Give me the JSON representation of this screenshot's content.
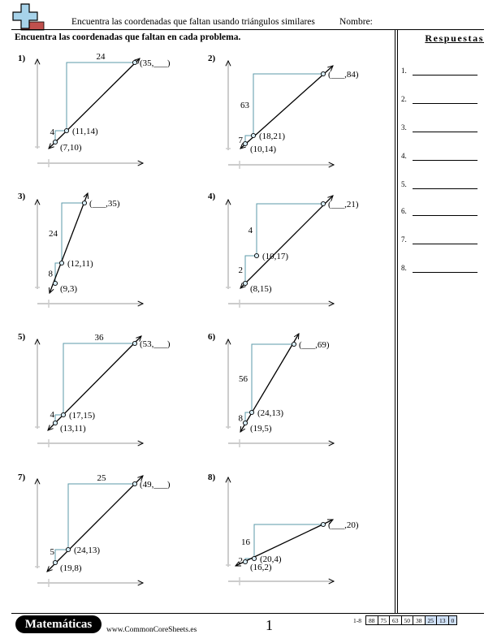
{
  "header": {
    "title": "Encuentra las coordenadas que faltan usando triángulos similares",
    "name_label": "Nombre:"
  },
  "instructions": "Encuentra las coordenadas que faltan en cada problema.",
  "answers": {
    "title": "Respuestas",
    "items": [
      "1.",
      "2.",
      "3.",
      "4.",
      "5.",
      "6.",
      "7.",
      "8."
    ]
  },
  "problems": [
    {
      "number": "1)",
      "small_leg": "4",
      "big_leg": "24",
      "p1": "(7,10)",
      "p2": "(11,14)",
      "p3": "(35,___)",
      "orientation": "horizontal"
    },
    {
      "number": "2)",
      "small_leg": "7",
      "big_leg": "63",
      "p1": "(10,14)",
      "p2": "(18,21)",
      "p3": "(___,84)",
      "orientation": "vertical"
    },
    {
      "number": "3)",
      "small_leg": "8",
      "big_leg": "24",
      "p1": "(9,3)",
      "p2": "(12,11)",
      "p3": "(___,35)",
      "orientation": "vertical"
    },
    {
      "number": "4)",
      "small_leg": "2",
      "big_leg": "4",
      "p1": "(8,15)",
      "p2": "(10,17)",
      "p3": "(___,21)",
      "orientation": "vertical"
    },
    {
      "number": "5)",
      "small_leg": "4",
      "big_leg": "36",
      "p1": "(13,11)",
      "p2": "(17,15)",
      "p3": "(53,___)",
      "orientation": "horizontal"
    },
    {
      "number": "6)",
      "small_leg": "8",
      "big_leg": "56",
      "p1": "(19,5)",
      "p2": "(24,13)",
      "p3": "(___,69)",
      "orientation": "vertical"
    },
    {
      "number": "7)",
      "small_leg": "5",
      "big_leg": "25",
      "p1": "(19,8)",
      "p2": "(24,13)",
      "p3": "(49,___)",
      "orientation": "horizontal"
    },
    {
      "number": "8)",
      "small_leg": "2",
      "big_leg": "16",
      "p1": "(16,2)",
      "p2": "(20,4)",
      "p3": "(___,20)",
      "orientation": "vertical"
    }
  ],
  "footer": {
    "brand": "Matemáticas",
    "website": "www.CommonCoreSheets.es",
    "page_number": "1",
    "score_range": "1-8",
    "scores": [
      "88",
      "75",
      "63",
      "50",
      "38",
      "25",
      "13",
      "0"
    ],
    "highlighted_scores": [
      "25",
      "13",
      "0"
    ]
  },
  "colors": {
    "line": "#000000",
    "triangle": "#5b9aa8",
    "axis": "#cccccc",
    "point_fill": "#d7ecf7",
    "logo_cross": "#a7d3ea",
    "logo_bar": "#c0504d",
    "score_highlight": "#cfe0f7"
  }
}
